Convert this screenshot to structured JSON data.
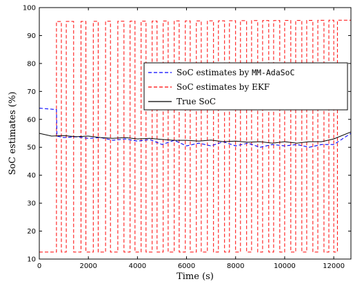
{
  "chart_data": {
    "type": "line",
    "xlabel": "Time (s)",
    "ylabel": "SoC estimates (%)",
    "xlim": [
      0,
      12700
    ],
    "ylim": [
      10,
      100
    ],
    "xticks": [
      0,
      2000,
      4000,
      6000,
      8000,
      10000,
      12000
    ],
    "yticks": [
      10,
      20,
      30,
      40,
      50,
      60,
      70,
      80,
      90,
      100
    ],
    "grid": false,
    "legend_position": "center-right",
    "series": [
      {
        "name": "SoC estimates by MM-AdaSoC",
        "legend_prefix": "SoC estimates by ",
        "legend_method": "MM-AdaSoC",
        "color": "#0000ff",
        "style": "dashed",
        "x": [
          0,
          700,
          720,
          1000,
          1500,
          2000,
          2500,
          3000,
          3500,
          4000,
          4500,
          5000,
          5500,
          6000,
          6500,
          7000,
          7500,
          8000,
          8500,
          9000,
          9500,
          10000,
          10500,
          11000,
          11500,
          12000,
          12700
        ],
        "y": [
          64,
          63.5,
          54,
          53.5,
          53.8,
          53.2,
          53.5,
          52.5,
          53,
          52.2,
          52.8,
          51,
          52.5,
          50.5,
          51.5,
          50.5,
          52,
          50.5,
          51.5,
          50,
          51,
          50.5,
          51,
          50,
          51,
          51,
          55
        ]
      },
      {
        "name": "SoC estimates by EKF",
        "legend_prefix": "SoC estimates by ",
        "legend_method": "EKF",
        "color": "#ff0000",
        "style": "dashed",
        "low": 12.5,
        "high_start": 95,
        "high_end": 95.5,
        "jump_times": [
          700,
          900,
          1100,
          1400,
          1700,
          1900,
          2200,
          2400,
          2700,
          2900,
          3200,
          3450,
          3700,
          3900,
          4150,
          4350,
          4600,
          4800,
          5050,
          5250,
          5500,
          5700,
          5950,
          6150,
          6400,
          6600,
          6850,
          7100,
          7300,
          7550,
          7750,
          8000,
          8200,
          8450,
          8650,
          8900,
          9100,
          9350,
          9550,
          9800,
          10000,
          10250,
          10450,
          10700,
          10900,
          11150,
          11350,
          11600,
          11800,
          12000,
          12150
        ]
      },
      {
        "name": "True SoC",
        "color": "#000000",
        "style": "solid",
        "x": [
          0,
          500,
          1000,
          1500,
          2000,
          2500,
          3000,
          3500,
          4000,
          4500,
          5000,
          5500,
          6000,
          6500,
          7000,
          7500,
          8000,
          8500,
          9000,
          9500,
          10000,
          10500,
          11000,
          11500,
          12000,
          12700
        ],
        "y": [
          55,
          54,
          54.2,
          53.8,
          54,
          53.5,
          53.2,
          53.5,
          53,
          53.2,
          52.8,
          52.5,
          52.5,
          52.2,
          52.6,
          52,
          52.2,
          51.8,
          52,
          51.5,
          52,
          51.5,
          52,
          52,
          53,
          55.5
        ]
      }
    ]
  }
}
